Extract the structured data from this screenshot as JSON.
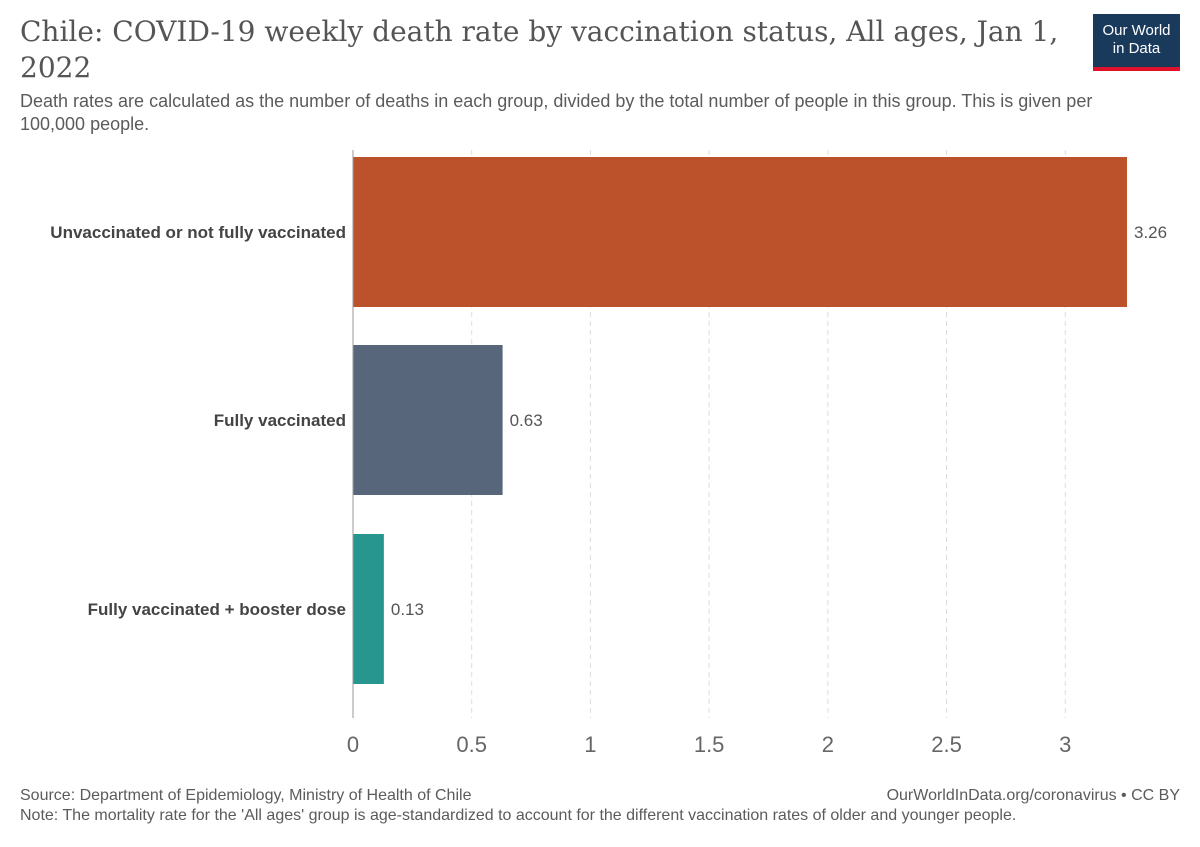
{
  "chart_data": {
    "type": "bar",
    "orientation": "horizontal",
    "title": "Chile: COVID-19 weekly death rate by vaccination status, All ages, Jan 1, 2022",
    "subtitle": "Death rates are calculated as the number of deaths in each group, divided by the total number of people in this group. This is given per 100,000 people.",
    "categories": [
      "Unvaccinated or not fully vaccinated",
      "Fully vaccinated",
      "Fully vaccinated + booster dose"
    ],
    "values": [
      3.26,
      0.63,
      0.13
    ],
    "value_labels": [
      "3.26",
      "0.63",
      "0.13"
    ],
    "colors": [
      "#bb522c",
      "#58667c",
      "#26968f"
    ],
    "xlim": [
      0,
      3.26
    ],
    "xticks": [
      0,
      0.5,
      1,
      1.5,
      2,
      2.5,
      3
    ],
    "xtick_labels": [
      "0",
      "0.5",
      "1",
      "1.5",
      "2",
      "2.5",
      "3"
    ],
    "grid": "vertical dashed",
    "xlabel": "",
    "ylabel": ""
  },
  "logo": {
    "line1": "Our World",
    "line2": "in Data"
  },
  "footer": {
    "source": "Source: Department of Epidemiology, Ministry of Health of Chile",
    "note": "Note: The mortality rate for the 'All ages' group is age-standardized to account for the different vaccination rates of older and younger people.",
    "credit": "OurWorldInData.org/coronavirus • CC BY"
  }
}
